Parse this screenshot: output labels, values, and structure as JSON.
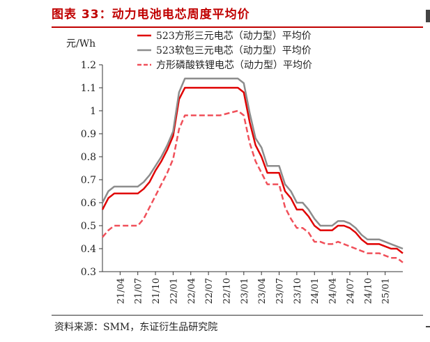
{
  "figure": {
    "title": "图表 33：动力电池电芯周度平均价",
    "source": "资料来源：SMM，东证衍生品研究院"
  },
  "chart_data": {
    "type": "line",
    "ylabel": "元/Wh",
    "ylim": [
      0.3,
      1.2
    ],
    "yticks": [
      "1.2",
      "1.1",
      "1",
      "0.9",
      "0.8",
      "0.7",
      "0.6",
      "0.5",
      "0.4",
      "0.3"
    ],
    "xlim": [
      "2021-01",
      "2025-04"
    ],
    "xtick_labels": [
      "21/04",
      "21/07",
      "21/10",
      "22/01",
      "22/04",
      "22/07",
      "22/10",
      "23/01",
      "23/04",
      "23/07",
      "23/10",
      "24/01",
      "24/04",
      "24/07",
      "24/10",
      "25/01"
    ],
    "legend_position": "top",
    "series": [
      {
        "name": "523方形三元电芯（动力型）平均价",
        "color": "#e00000",
        "style": "solid",
        "points": [
          [
            "2021-01",
            0.57
          ],
          [
            "2021-02",
            0.62
          ],
          [
            "2021-03",
            0.64
          ],
          [
            "2021-05",
            0.64
          ],
          [
            "2021-07",
            0.64
          ],
          [
            "2021-08",
            0.66
          ],
          [
            "2021-09",
            0.69
          ],
          [
            "2021-10",
            0.74
          ],
          [
            "2021-11",
            0.78
          ],
          [
            "2021-12",
            0.83
          ],
          [
            "2022-01",
            0.89
          ],
          [
            "2022-02",
            1.05
          ],
          [
            "2022-03",
            1.1
          ],
          [
            "2022-06",
            1.1
          ],
          [
            "2022-09",
            1.1
          ],
          [
            "2022-12",
            1.1
          ],
          [
            "2023-01",
            1.08
          ],
          [
            "2023-02",
            0.95
          ],
          [
            "2023-03",
            0.85
          ],
          [
            "2023-04",
            0.8
          ],
          [
            "2023-05",
            0.73
          ],
          [
            "2023-06",
            0.73
          ],
          [
            "2023-07",
            0.73
          ],
          [
            "2023-08",
            0.65
          ],
          [
            "2023-09",
            0.62
          ],
          [
            "2023-10",
            0.57
          ],
          [
            "2023-11",
            0.57
          ],
          [
            "2023-12",
            0.54
          ],
          [
            "2024-01",
            0.5
          ],
          [
            "2024-02",
            0.48
          ],
          [
            "2024-03",
            0.48
          ],
          [
            "2024-04",
            0.48
          ],
          [
            "2024-05",
            0.5
          ],
          [
            "2024-06",
            0.5
          ],
          [
            "2024-07",
            0.49
          ],
          [
            "2024-08",
            0.47
          ],
          [
            "2024-09",
            0.44
          ],
          [
            "2024-10",
            0.42
          ],
          [
            "2024-11",
            0.42
          ],
          [
            "2024-12",
            0.42
          ],
          [
            "2025-01",
            0.41
          ],
          [
            "2025-02",
            0.4
          ],
          [
            "2025-03",
            0.4
          ],
          [
            "2025-04",
            0.38
          ]
        ]
      },
      {
        "name": "523软包三元电芯（动力型）平均价",
        "color": "#8c8c8c",
        "style": "solid",
        "points": [
          [
            "2021-01",
            0.6
          ],
          [
            "2021-02",
            0.65
          ],
          [
            "2021-03",
            0.67
          ],
          [
            "2021-05",
            0.67
          ],
          [
            "2021-07",
            0.67
          ],
          [
            "2021-08",
            0.69
          ],
          [
            "2021-09",
            0.72
          ],
          [
            "2021-10",
            0.76
          ],
          [
            "2021-11",
            0.8
          ],
          [
            "2021-12",
            0.85
          ],
          [
            "2022-01",
            0.91
          ],
          [
            "2022-02",
            1.08
          ],
          [
            "2022-03",
            1.14
          ],
          [
            "2022-06",
            1.14
          ],
          [
            "2022-09",
            1.14
          ],
          [
            "2022-12",
            1.14
          ],
          [
            "2023-01",
            1.12
          ],
          [
            "2023-02",
            0.99
          ],
          [
            "2023-03",
            0.88
          ],
          [
            "2023-04",
            0.84
          ],
          [
            "2023-05",
            0.76
          ],
          [
            "2023-06",
            0.76
          ],
          [
            "2023-07",
            0.76
          ],
          [
            "2023-08",
            0.68
          ],
          [
            "2023-09",
            0.65
          ],
          [
            "2023-10",
            0.6
          ],
          [
            "2023-11",
            0.6
          ],
          [
            "2023-12",
            0.57
          ],
          [
            "2024-01",
            0.53
          ],
          [
            "2024-02",
            0.5
          ],
          [
            "2024-03",
            0.5
          ],
          [
            "2024-04",
            0.5
          ],
          [
            "2024-05",
            0.52
          ],
          [
            "2024-06",
            0.52
          ],
          [
            "2024-07",
            0.51
          ],
          [
            "2024-08",
            0.49
          ],
          [
            "2024-09",
            0.46
          ],
          [
            "2024-10",
            0.44
          ],
          [
            "2024-11",
            0.44
          ],
          [
            "2024-12",
            0.44
          ],
          [
            "2025-01",
            0.43
          ],
          [
            "2025-02",
            0.42
          ],
          [
            "2025-03",
            0.41
          ],
          [
            "2025-04",
            0.4
          ]
        ]
      },
      {
        "name": "方形磷酸铁锂电芯（动力型）平均价",
        "color": "#f0505a",
        "style": "dashed",
        "points": [
          [
            "2021-01",
            0.45
          ],
          [
            "2021-02",
            0.48
          ],
          [
            "2021-03",
            0.5
          ],
          [
            "2021-05",
            0.5
          ],
          [
            "2021-07",
            0.5
          ],
          [
            "2021-08",
            0.53
          ],
          [
            "2021-09",
            0.58
          ],
          [
            "2021-10",
            0.63
          ],
          [
            "2021-11",
            0.68
          ],
          [
            "2021-12",
            0.73
          ],
          [
            "2022-01",
            0.79
          ],
          [
            "2022-02",
            0.92
          ],
          [
            "2022-03",
            0.98
          ],
          [
            "2022-06",
            0.98
          ],
          [
            "2022-09",
            0.98
          ],
          [
            "2022-12",
            1.0
          ],
          [
            "2023-01",
            0.98
          ],
          [
            "2023-02",
            0.86
          ],
          [
            "2023-03",
            0.78
          ],
          [
            "2023-04",
            0.73
          ],
          [
            "2023-05",
            0.68
          ],
          [
            "2023-06",
            0.68
          ],
          [
            "2023-07",
            0.68
          ],
          [
            "2023-08",
            0.58
          ],
          [
            "2023-09",
            0.53
          ],
          [
            "2023-10",
            0.49
          ],
          [
            "2023-11",
            0.49
          ],
          [
            "2023-12",
            0.47
          ],
          [
            "2024-01",
            0.43
          ],
          [
            "2024-02",
            0.43
          ],
          [
            "2024-03",
            0.42
          ],
          [
            "2024-04",
            0.42
          ],
          [
            "2024-05",
            0.43
          ],
          [
            "2024-06",
            0.42
          ],
          [
            "2024-07",
            0.41
          ],
          [
            "2024-08",
            0.4
          ],
          [
            "2024-09",
            0.39
          ],
          [
            "2024-10",
            0.38
          ],
          [
            "2024-11",
            0.38
          ],
          [
            "2024-12",
            0.38
          ],
          [
            "2025-01",
            0.37
          ],
          [
            "2025-02",
            0.36
          ],
          [
            "2025-03",
            0.36
          ],
          [
            "2025-04",
            0.34
          ]
        ]
      }
    ]
  }
}
